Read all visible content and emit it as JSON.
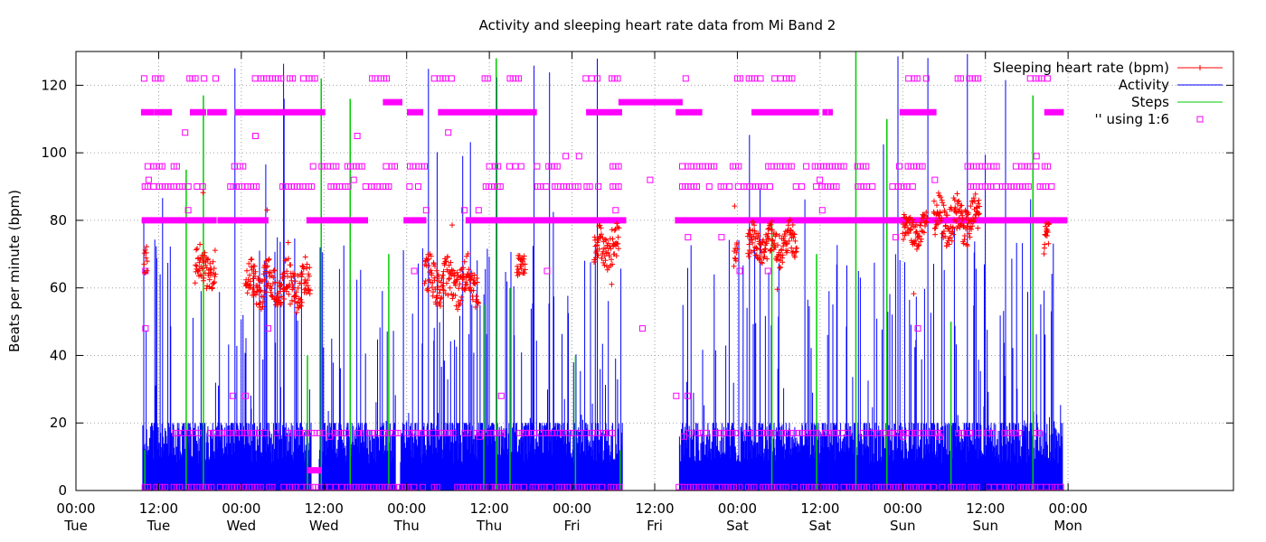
{
  "chart_data": {
    "type": "scatter",
    "title": "Activity and sleeping heart rate data from Mi Band 2",
    "ylabel": "Beats per minute (bpm)",
    "xlabel": "",
    "ylim": [
      0,
      130
    ],
    "xlim_hours": [
      0,
      168
    ],
    "grid": true,
    "legend_position": "top-right",
    "y_ticks": [
      0,
      20,
      40,
      60,
      80,
      100,
      120
    ],
    "x_ticks": [
      {
        "h": 0,
        "time": "00:00",
        "day": "Tue"
      },
      {
        "h": 12,
        "time": "12:00",
        "day": "Tue"
      },
      {
        "h": 24,
        "time": "00:00",
        "day": "Wed"
      },
      {
        "h": 36,
        "time": "12:00",
        "day": "Wed"
      },
      {
        "h": 48,
        "time": "00:00",
        "day": "Thu"
      },
      {
        "h": 60,
        "time": "12:00",
        "day": "Thu"
      },
      {
        "h": 72,
        "time": "00:00",
        "day": "Fri"
      },
      {
        "h": 84,
        "time": "12:00",
        "day": "Fri"
      },
      {
        "h": 96,
        "time": "00:00",
        "day": "Sat"
      },
      {
        "h": 108,
        "time": "12:00",
        "day": "Sat"
      },
      {
        "h": 120,
        "time": "00:00",
        "day": "Sun"
      },
      {
        "h": 132,
        "time": "12:00",
        "day": "Sun"
      },
      {
        "h": 144,
        "time": "00:00",
        "day": "Mon"
      }
    ],
    "colors": {
      "sleeping_hr": "#ff0000",
      "activity": "#0000ff",
      "steps": "#00cc00",
      "raw_kind": "#ff00ff"
    },
    "series": [
      {
        "name": "Sleeping heart rate (bpm)",
        "kind": "points",
        "segments": [
          {
            "start": 9.9,
            "end": 10.4,
            "mean": 65,
            "spread": 7
          },
          {
            "start": 17.3,
            "end": 20.3,
            "mean": 66,
            "spread": 6
          },
          {
            "start": 24.6,
            "end": 34.0,
            "mean": 61,
            "spread": 7
          },
          {
            "start": 50.6,
            "end": 58.4,
            "mean": 62,
            "spread": 7
          },
          {
            "start": 64.0,
            "end": 65.2,
            "mean": 66,
            "spread": 4
          },
          {
            "start": 75.2,
            "end": 78.8,
            "mean": 72,
            "spread": 6
          },
          {
            "start": 95.5,
            "end": 96.0,
            "mean": 69,
            "spread": 4
          },
          {
            "start": 97.5,
            "end": 104.6,
            "mean": 73,
            "spread": 6
          },
          {
            "start": 120.0,
            "end": 123.5,
            "mean": 77,
            "spread": 5
          },
          {
            "start": 124.5,
            "end": 131.2,
            "mean": 80,
            "spread": 7
          },
          {
            "start": 140.5,
            "end": 141.3,
            "mean": 74,
            "spread": 5
          }
        ]
      },
      {
        "name": "Activity",
        "kind": "impulses",
        "segments": [
          [
            9.7,
            34.2
          ],
          [
            35.3,
            46.4
          ],
          [
            47.1,
            79.3
          ],
          [
            87.6,
            143.2
          ]
        ],
        "base_level": 20,
        "max_value": 130
      },
      {
        "name": "Steps",
        "kind": "impulses",
        "spikes": [
          {
            "h": 10.0,
            "v": 12
          },
          {
            "h": 16.0,
            "v": 95
          },
          {
            "h": 18.5,
            "v": 117
          },
          {
            "h": 33.6,
            "v": 40
          },
          {
            "h": 35.6,
            "v": 122
          },
          {
            "h": 39.8,
            "v": 116
          },
          {
            "h": 45.4,
            "v": 70
          },
          {
            "h": 59.2,
            "v": 55
          },
          {
            "h": 61.0,
            "v": 128
          },
          {
            "h": 63.0,
            "v": 60
          },
          {
            "h": 72.5,
            "v": 40
          },
          {
            "h": 79.0,
            "v": 12
          },
          {
            "h": 101.0,
            "v": 80
          },
          {
            "h": 107.5,
            "v": 70
          },
          {
            "h": 113.2,
            "v": 130
          },
          {
            "h": 117.7,
            "v": 110
          },
          {
            "h": 127.0,
            "v": 50
          },
          {
            "h": 138.9,
            "v": 117
          }
        ]
      },
      {
        "name": "'' using 1:6",
        "kind": "points",
        "bands": [
          {
            "v": 80,
            "segments": [
              [
                10.0,
                20.0
              ],
              [
                21.0,
                27.5
              ],
              [
                33.9,
                42.0
              ],
              [
                48.0,
                50.5
              ],
              [
                57.0,
                64.5
              ],
              [
                65.0,
                79.5
              ],
              [
                87.4,
                96.0
              ],
              [
                96.0,
                120.5
              ],
              [
                121.0,
                143.5
              ]
            ],
            "dense": true
          },
          {
            "v": 112,
            "segments": [
              [
                9.9,
                10.9
              ],
              [
                11.8,
                13.5
              ],
              [
                17.0,
                18.5
              ],
              [
                19.5,
                21.5
              ],
              [
                23.5,
                26.0
              ],
              [
                26.2,
                34.2
              ],
              [
                35.0,
                35.8
              ],
              [
                48.5,
                50.0
              ],
              [
                53.0,
                61.8
              ],
              [
                62.0,
                66.5
              ],
              [
                74.5,
                78.9
              ],
              [
                87.5,
                88.5
              ],
              [
                89.0,
                90.5
              ],
              [
                98.5,
                107.5
              ],
              [
                108.8,
                109.5
              ],
              [
                120.0,
                124.5
              ],
              [
                141.0,
                143.0
              ]
            ],
            "dense": true
          },
          {
            "v": 115,
            "segments": [
              [
                45.0,
                47.0
              ],
              [
                79.2,
                87.7
              ]
            ],
            "dense": true
          },
          {
            "v": 96,
            "segments": [
              [
                10.0,
                15.0
              ],
              [
                23.0,
                25.5
              ],
              [
                34.0,
                38.0
              ],
              [
                39.0,
                43.5
              ],
              [
                45.0,
                46.5
              ],
              [
                48.5,
                51.0
              ],
              [
                60.0,
                65.0
              ],
              [
                66.5,
                70.0
              ],
              [
                77.5,
                79.0
              ],
              [
                88.0,
                93.0
              ],
              [
                94.5,
                97.0
              ],
              [
                100.5,
                104.0
              ],
              [
                106.0,
                112.0
              ],
              [
                113.0,
                115.5
              ],
              [
                119.5,
                123.0
              ],
              [
                129.0,
                134.0
              ],
              [
                136.0,
                141.5
              ]
            ],
            "dense": false
          },
          {
            "v": 90,
            "segments": [
              [
                10.0,
                18.5
              ],
              [
                22.0,
                26.5
              ],
              [
                30.0,
                34.5
              ],
              [
                37.0,
                45.5
              ],
              [
                48.0,
                50.0
              ],
              [
                59.5,
                62.0
              ],
              [
                67.0,
                76.0
              ],
              [
                77.5,
                79.0
              ],
              [
                88.0,
                90.5
              ],
              [
                91.5,
                101.0
              ],
              [
                104.5,
                112.0
              ],
              [
                113.5,
                117.0
              ],
              [
                118.5,
                122.0
              ],
              [
                129.0,
                142.0
              ]
            ],
            "dense": false
          },
          {
            "v": 122,
            "segments": [
              [
                9.9,
                10.3
              ],
              [
                11.5,
                12.5
              ],
              [
                16.5,
                20.5
              ],
              [
                26.0,
                31.5
              ],
              [
                33.0,
                35.0
              ],
              [
                43.0,
                46.5
              ],
              [
                52.0,
                55.0
              ],
              [
                58.5,
                60.5
              ],
              [
                63.0,
                64.5
              ],
              [
                74.0,
                79.0
              ],
              [
                88.5,
                89.5
              ],
              [
                96.0,
                100.0
              ],
              [
                101.0,
                104.5
              ],
              [
                120.0,
                122.5
              ],
              [
                123.0,
                124.0
              ],
              [
                128.0,
                131.5
              ],
              [
                138.5,
                141.5
              ]
            ],
            "dense": false
          },
          {
            "v": 6,
            "segments": [
              [
                34.0,
                35.3
              ]
            ],
            "dense": true
          },
          {
            "v": 1,
            "segments": [
              [
                10.0,
                79.0
              ],
              [
                87.5,
                143.0
              ]
            ],
            "dense": false
          },
          {
            "v": 17,
            "segments": [
              [
                14.0,
                79.0
              ],
              [
                89.0,
                140.0
              ]
            ],
            "dense": false
          }
        ]
      }
    ]
  }
}
